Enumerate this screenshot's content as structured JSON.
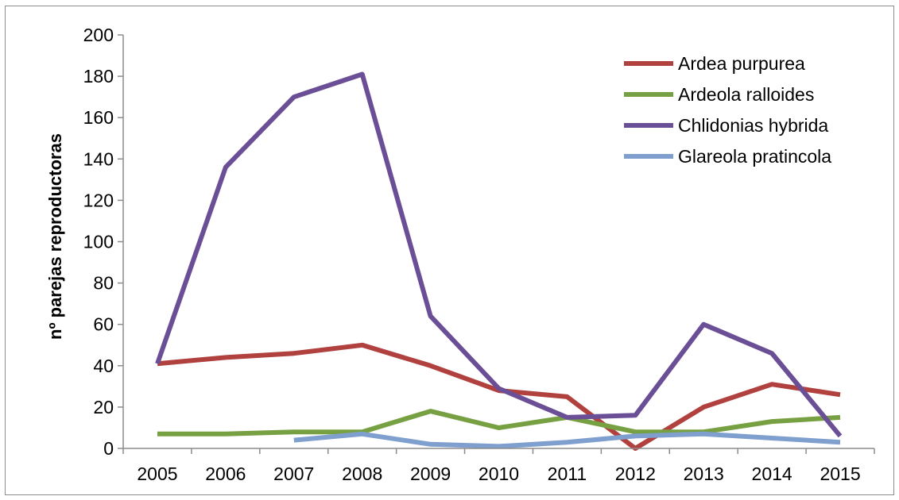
{
  "chart_data": {
    "type": "line",
    "title": "",
    "xlabel": "",
    "ylabel": "nº parejas reproductoras",
    "x": [
      "2005",
      "2006",
      "2007",
      "2008",
      "2009",
      "2010",
      "2011",
      "2012",
      "2013",
      "2014",
      "2015"
    ],
    "ylim": [
      0,
      200
    ],
    "yticks": [
      0,
      20,
      40,
      60,
      80,
      100,
      120,
      140,
      160,
      180,
      200
    ],
    "grid": false,
    "legend_position": "top-right",
    "series": [
      {
        "name": "Ardea purpurea",
        "color": "#b0413e",
        "values": [
          41,
          44,
          46,
          50,
          40,
          28,
          25,
          0,
          20,
          31,
          26
        ]
      },
      {
        "name": "Ardeola ralloides",
        "color": "#77a043",
        "values": [
          7,
          7,
          8,
          8,
          18,
          10,
          15,
          8,
          8,
          13,
          15
        ]
      },
      {
        "name": "Chlidonias hybrida",
        "color": "#6b4f96",
        "values": [
          41,
          136,
          170,
          181,
          64,
          29,
          15,
          16,
          60,
          46,
          6
        ]
      },
      {
        "name": "Glareola pratincola",
        "color": "#7f9fcf",
        "values": [
          null,
          null,
          4,
          7,
          2,
          1,
          3,
          6,
          7,
          5,
          3
        ]
      }
    ]
  }
}
